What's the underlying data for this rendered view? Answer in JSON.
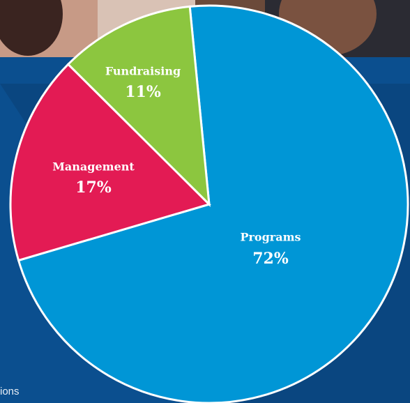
{
  "chart_data": {
    "type": "pie",
    "categories": [
      "Programs",
      "Management",
      "Fundraising"
    ],
    "values": [
      72,
      17,
      11
    ],
    "value_labels": [
      "72%",
      "17%",
      "11%"
    ],
    "colors": [
      "#0096d6",
      "#e31b54",
      "#8cc63f"
    ],
    "footnote": "ions"
  }
}
